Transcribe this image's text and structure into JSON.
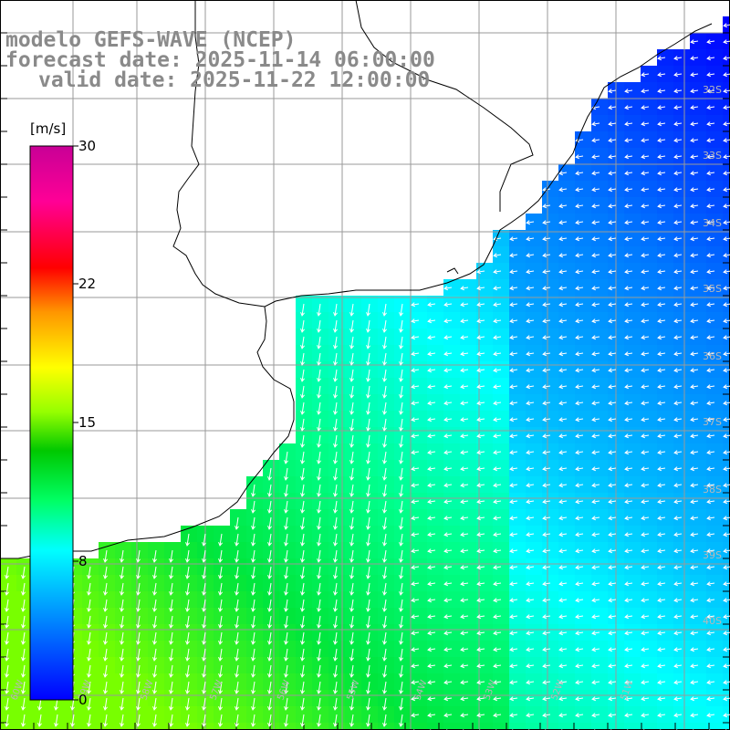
{
  "title": {
    "line1": "modelo GEFS-WAVE (NCEP)",
    "line2": "forecast date: 2025-11-14 06:00:00",
    "line3": "valid date: 2025-11-22 12:00:00"
  },
  "colorbar": {
    "unit": "[m/s]",
    "ticks": [
      "30",
      "22",
      "15",
      "8",
      "0"
    ],
    "colors": [
      "#0000ff",
      "#0096ff",
      "#00ffff",
      "#00ff64",
      "#00c800",
      "#96ff00",
      "#ffff00",
      "#ff9600",
      "#ff0000",
      "#ff0096",
      "#c80096"
    ]
  },
  "lat_labels": [
    "32S",
    "33S",
    "34S",
    "35S",
    "36S",
    "37S",
    "38S",
    "39S",
    "40S"
  ],
  "lon_labels": [
    "60W",
    "59W",
    "58W",
    "57W",
    "56W",
    "55W",
    "54W",
    "53W",
    "52W",
    "51W"
  ],
  "colors": {
    "land": "#ffffff",
    "grid": "#9a9a9a",
    "coast": "#000000",
    "arrow": "#ffffff"
  }
}
